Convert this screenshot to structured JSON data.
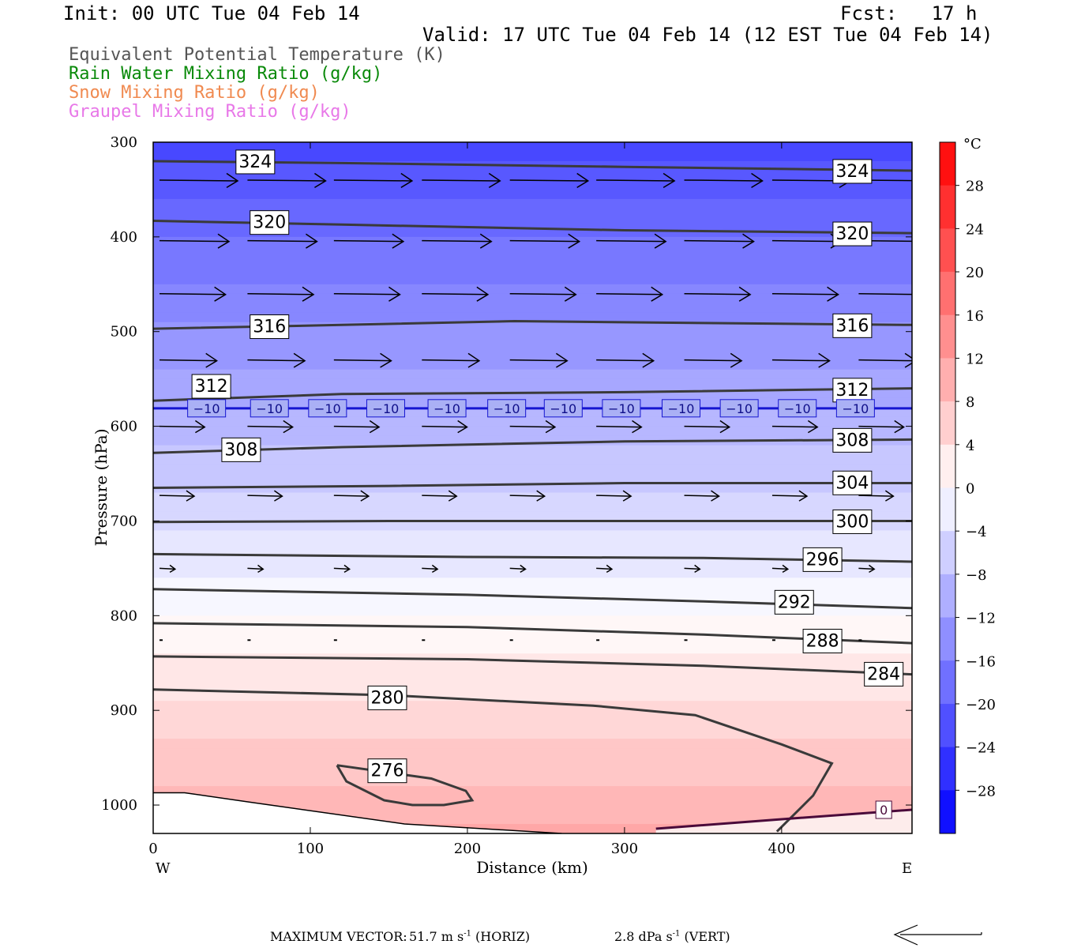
{
  "header": {
    "init": "Init: 00 UTC Tue 04 Feb 14",
    "fcst": "Fcst:   17 h",
    "valid": "Valid: 17 UTC Tue 04 Feb 14 (12 EST Tue 04 Feb 14)"
  },
  "fields": [
    {
      "label": "Equivalent Potential Temperature (K)",
      "color": "#555555"
    },
    {
      "label": "Rain Water Mixing Ratio (g/kg)",
      "color": "#0a8a0a"
    },
    {
      "label": "Snow Mixing Ratio (g/kg)",
      "color": "#f08a50"
    },
    {
      "label": "Graupel Mixing Ratio (g/kg)",
      "color": "#e878e8"
    }
  ],
  "footer": {
    "max_vector_label": "MAXIMUM VECTOR:",
    "horiz_value": "51.7",
    "horiz_unit": "m s",
    "horiz_exp": "-1",
    "horiz_tag": "(HORIZ)",
    "vert_value": "2.8",
    "vert_unit": "dPa s",
    "vert_exp": "-1",
    "vert_tag": "(VERT)"
  },
  "chart_data": {
    "type": "cross-section",
    "xlabel": "Distance (km)",
    "ylabel": "Pressure (hPa)",
    "xlim": [
      0,
      483
    ],
    "ylim": [
      1030,
      300
    ],
    "x_ticks": [
      0,
      100,
      200,
      300,
      400
    ],
    "y_ticks": [
      300,
      400,
      500,
      600,
      700,
      800,
      900,
      1000
    ],
    "x_end_labels": {
      "left": "W",
      "right": "E"
    },
    "colorbar": {
      "unit": "°C",
      "ticks": [
        28,
        24,
        20,
        16,
        12,
        8,
        4,
        0,
        -4,
        -8,
        -12,
        -16,
        -20,
        -24,
        -28
      ],
      "range": [
        -32,
        32
      ]
    },
    "theta_e_contours": [
      {
        "value": 324,
        "points": [
          [
            0,
            320
          ],
          [
            120,
            322
          ],
          [
            300,
            326
          ],
          [
            483,
            330
          ]
        ],
        "labels": [
          [
            65,
            320
          ],
          [
            445,
            330
          ]
        ]
      },
      {
        "value": 320,
        "points": [
          [
            0,
            383
          ],
          [
            120,
            387
          ],
          [
            300,
            393
          ],
          [
            483,
            396
          ]
        ],
        "labels": [
          [
            74,
            384
          ],
          [
            445,
            396
          ]
        ]
      },
      {
        "value": 316,
        "points": [
          [
            0,
            497
          ],
          [
            120,
            493
          ],
          [
            230,
            489
          ],
          [
            350,
            491
          ],
          [
            483,
            493
          ]
        ],
        "labels": [
          [
            74,
            494
          ],
          [
            445,
            493
          ]
        ]
      },
      {
        "value": 312,
        "points": [
          [
            0,
            573
          ],
          [
            120,
            566
          ],
          [
            300,
            564
          ],
          [
            483,
            560
          ]
        ],
        "labels": [
          [
            37,
            557
          ],
          [
            445,
            561
          ]
        ]
      },
      {
        "value": 308,
        "points": [
          [
            0,
            628
          ],
          [
            120,
            622
          ],
          [
            300,
            616
          ],
          [
            483,
            614
          ]
        ],
        "labels": [
          [
            56,
            624
          ],
          [
            445,
            614
          ]
        ]
      },
      {
        "value": 304,
        "points": [
          [
            0,
            665
          ],
          [
            150,
            663
          ],
          [
            300,
            660
          ],
          [
            483,
            660
          ]
        ],
        "labels": [
          [
            445,
            659
          ]
        ]
      },
      {
        "value": 300,
        "points": [
          [
            0,
            701
          ],
          [
            150,
            700
          ],
          [
            300,
            700
          ],
          [
            483,
            700
          ]
        ],
        "labels": [
          [
            445,
            700
          ]
        ]
      },
      {
        "value": 296,
        "points": [
          [
            0,
            735
          ],
          [
            200,
            738
          ],
          [
            350,
            739
          ],
          [
            483,
            743
          ]
        ],
        "labels": [
          [
            426,
            740
          ]
        ]
      },
      {
        "value": 292,
        "points": [
          [
            0,
            772
          ],
          [
            200,
            778
          ],
          [
            350,
            785
          ],
          [
            483,
            792
          ]
        ],
        "labels": [
          [
            408,
            785
          ]
        ]
      },
      {
        "value": 288,
        "points": [
          [
            0,
            808
          ],
          [
            200,
            812
          ],
          [
            350,
            820
          ],
          [
            483,
            829
          ]
        ],
        "labels": [
          [
            426,
            826
          ]
        ]
      },
      {
        "value": 284,
        "points": [
          [
            0,
            843
          ],
          [
            200,
            846
          ],
          [
            350,
            853
          ],
          [
            483,
            862
          ]
        ],
        "labels": [
          [
            465,
            861
          ]
        ]
      },
      {
        "value": 280,
        "points": [
          [
            0,
            878
          ],
          [
            150,
            884
          ],
          [
            280,
            895
          ],
          [
            345,
            905
          ],
          [
            400,
            936
          ],
          [
            432,
            956
          ],
          [
            420,
            990
          ],
          [
            397,
            1028
          ]
        ],
        "labels": [
          [
            149,
            886
          ]
        ]
      }
    ],
    "theta_e_276": {
      "value": 276,
      "points": [
        [
          117,
          958
        ],
        [
          177,
          972
        ],
        [
          199,
          985
        ],
        [
          203,
          995
        ],
        [
          185,
          1000
        ],
        [
          165,
          1000
        ],
        [
          147,
          995
        ],
        [
          123,
          975
        ],
        [
          117,
          958
        ]
      ],
      "label": [
        149,
        963
      ]
    },
    "temp_minus10": {
      "value": -10,
      "p": 581,
      "labels_x": [
        34,
        74,
        111,
        148,
        187,
        225,
        261,
        298,
        336,
        373,
        410,
        447
      ]
    },
    "freezing_line": {
      "value": 0,
      "points": [
        [
          320,
          1025
        ],
        [
          400,
          1015
        ],
        [
          483,
          1005
        ]
      ],
      "label": [
        465,
        1005
      ]
    },
    "ground": {
      "points": [
        [
          0,
          987
        ],
        [
          20,
          987
        ],
        [
          70,
          999
        ],
        [
          160,
          1020
        ],
        [
          260,
          1030
        ]
      ]
    },
    "wind_rows": [
      {
        "p": 340,
        "x": [
          0,
          56,
          111,
          167,
          223,
          278,
          334,
          390,
          445
        ],
        "len": 45
      },
      {
        "p": 404,
        "x": [
          0,
          56,
          111,
          167,
          223,
          278,
          334,
          390,
          445
        ],
        "len": 40
      },
      {
        "p": 460,
        "x": [
          0,
          56,
          111,
          167,
          223,
          278,
          334,
          390,
          445
        ],
        "len": 38
      },
      {
        "p": 530,
        "x": [
          0,
          56,
          111,
          167,
          223,
          278,
          334,
          390,
          445
        ],
        "len": 33
      },
      {
        "p": 600,
        "x": [
          0,
          56,
          111,
          167,
          223,
          278,
          334,
          390,
          445
        ],
        "len": 26
      },
      {
        "p": 673,
        "x": [
          0,
          56,
          111,
          167,
          223,
          278,
          334,
          390,
          445
        ],
        "len": 20
      },
      {
        "p": 750,
        "x": [
          0,
          56,
          111,
          167,
          223,
          278,
          334,
          390,
          445
        ],
        "len": 9
      },
      {
        "p": 825,
        "x": [
          0,
          56,
          111,
          167,
          223,
          278,
          334,
          390,
          445
        ],
        "len": 2
      }
    ]
  }
}
